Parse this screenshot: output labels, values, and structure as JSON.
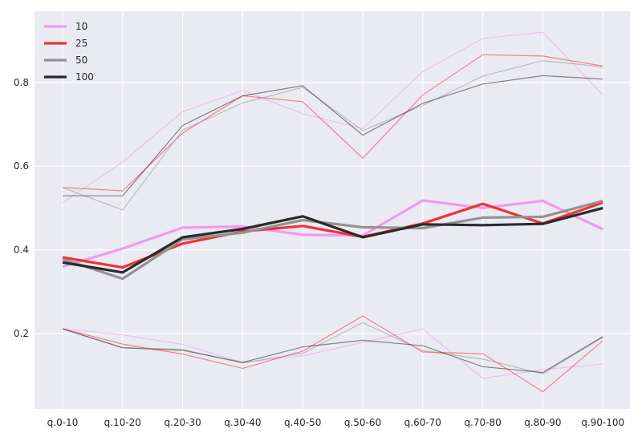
{
  "chart_data": {
    "type": "line",
    "title": "",
    "xlabel": "",
    "ylabel": "",
    "categories": [
      "q.0-10",
      "q.10-20",
      "q.20-30",
      "q.30-40",
      "q.40-50",
      "q.50-60",
      "q.60-70",
      "q.70-80",
      "q.80-90",
      "q.90-100"
    ],
    "ylim": [
      0.02,
      0.97
    ],
    "yticks": [
      0.2,
      0.4,
      0.6,
      0.8
    ],
    "ytick_labels": [
      "0.2",
      "0.4",
      "0.6",
      "0.8"
    ],
    "grid": true,
    "legend_position": "top-left",
    "series": [
      {
        "name": "10",
        "color": "#f19af0",
        "mean": [
          0.36,
          0.403,
          0.453,
          0.456,
          0.436,
          0.434,
          0.518,
          0.5,
          0.517,
          0.449
        ],
        "upper": [
          0.512,
          0.61,
          0.73,
          0.781,
          0.725,
          0.69,
          0.826,
          0.905,
          0.92,
          0.77
        ],
        "lower": [
          0.212,
          0.197,
          0.174,
          0.131,
          0.147,
          0.179,
          0.211,
          0.093,
          0.114,
          0.127
        ]
      },
      {
        "name": "25",
        "color": "#ee3236",
        "mean": [
          0.382,
          0.358,
          0.415,
          0.444,
          0.457,
          0.431,
          0.463,
          0.51,
          0.463,
          0.513
        ],
        "upper": [
          0.549,
          0.541,
          0.679,
          0.768,
          0.754,
          0.619,
          0.77,
          0.866,
          0.863,
          0.839
        ],
        "lower": [
          0.212,
          0.175,
          0.151,
          0.117,
          0.158,
          0.242,
          0.156,
          0.152,
          0.061,
          0.183
        ]
      },
      {
        "name": "50",
        "color": "#939393",
        "mean": [
          0.378,
          0.331,
          0.425,
          0.441,
          0.471,
          0.454,
          0.452,
          0.477,
          0.479,
          0.517
        ],
        "upper": [
          0.549,
          0.495,
          0.686,
          0.751,
          0.788,
          0.685,
          0.745,
          0.815,
          0.852,
          0.837
        ],
        "lower": [
          0.212,
          0.167,
          0.162,
          0.13,
          0.153,
          0.226,
          0.159,
          0.139,
          0.104,
          0.191
        ]
      },
      {
        "name": "100",
        "color": "#2a2a2a",
        "mean": [
          0.37,
          0.346,
          0.43,
          0.45,
          0.48,
          0.43,
          0.461,
          0.459,
          0.462,
          0.5
        ],
        "upper": [
          0.529,
          0.529,
          0.697,
          0.768,
          0.792,
          0.674,
          0.75,
          0.796,
          0.816,
          0.808
        ],
        "lower": [
          0.211,
          0.166,
          0.16,
          0.131,
          0.168,
          0.184,
          0.171,
          0.121,
          0.107,
          0.193
        ]
      }
    ]
  }
}
